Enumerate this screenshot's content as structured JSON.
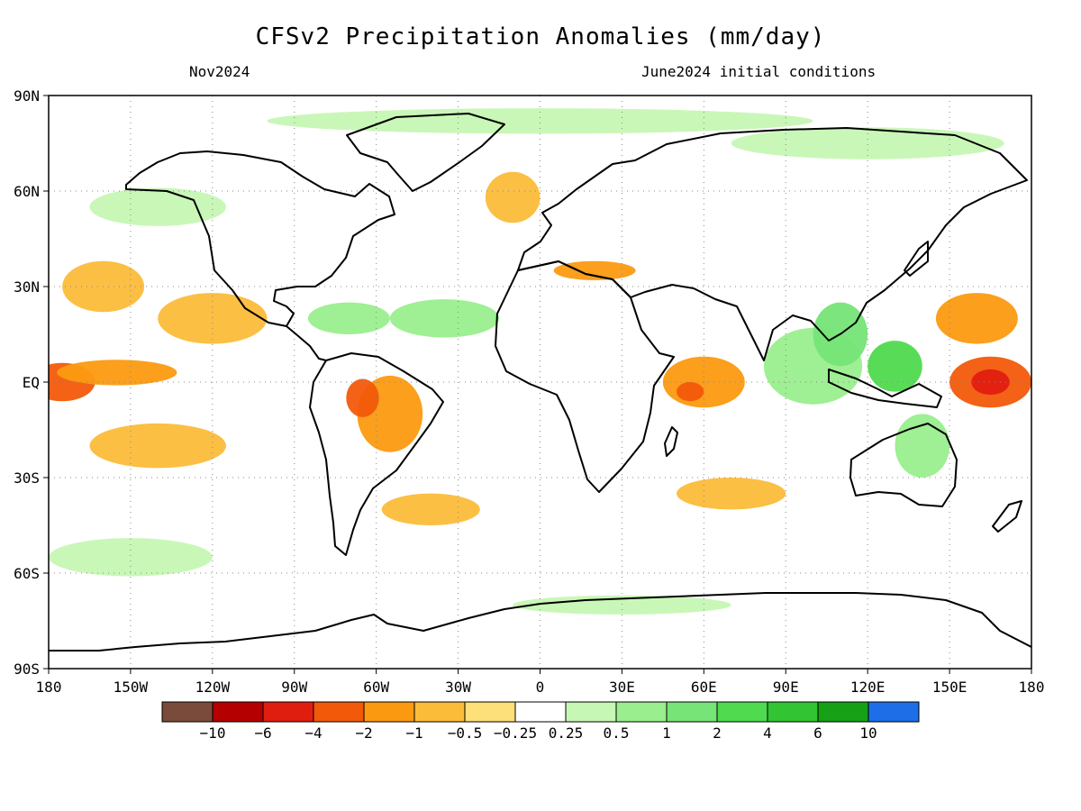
{
  "title": "CFSv2 Precipitation Anomalies (mm/day)",
  "valid_month": "Nov2024",
  "init_note": "June2024 initial conditions",
  "lat_ticks": [
    "90N",
    "60N",
    "30N",
    "EQ",
    "30S",
    "60S",
    "90S"
  ],
  "lon_ticks": [
    "180",
    "150W",
    "120W",
    "90W",
    "60W",
    "30W",
    "0",
    "30E",
    "60E",
    "90E",
    "120E",
    "150E",
    "180"
  ],
  "colorbar": {
    "colors": [
      "#7a4a3a",
      "#b40000",
      "#e01e10",
      "#f25a0a",
      "#fb9a10",
      "#fbbc3a",
      "#fde07a",
      "#ffffff",
      "#c6f7b4",
      "#9aee8e",
      "#76e476",
      "#4fda4f",
      "#32c432",
      "#16a016",
      "#1e6ee8"
    ],
    "labels": [
      "−10",
      "−6",
      "−4",
      "−2",
      "−1",
      "−0.5",
      "−0.25",
      "0.25",
      "0.5",
      "1",
      "2",
      "4",
      "6",
      "10"
    ]
  },
  "anomalies": [
    {
      "lon": -175,
      "lat": 0,
      "rx": 12,
      "ry": 6,
      "level": -2
    },
    {
      "lon": -155,
      "lat": 3,
      "rx": 22,
      "ry": 4,
      "level": -1
    },
    {
      "lon": -140,
      "lat": -20,
      "rx": 25,
      "ry": 7,
      "level": -0.5
    },
    {
      "lon": -120,
      "lat": 20,
      "rx": 20,
      "ry": 8,
      "level": -0.5
    },
    {
      "lon": -160,
      "lat": 30,
      "rx": 15,
      "ry": 8,
      "level": -0.5
    },
    {
      "lon": -140,
      "lat": 55,
      "rx": 25,
      "ry": 6,
      "level": 0.5
    },
    {
      "lon": -150,
      "lat": -55,
      "rx": 30,
      "ry": 6,
      "level": 0.5
    },
    {
      "lon": -70,
      "lat": 20,
      "rx": 15,
      "ry": 5,
      "level": 1
    },
    {
      "lon": -35,
      "lat": 20,
      "rx": 20,
      "ry": 6,
      "level": 1
    },
    {
      "lon": -55,
      "lat": -10,
      "rx": 12,
      "ry": 12,
      "level": -1
    },
    {
      "lon": -65,
      "lat": -5,
      "rx": 6,
      "ry": 6,
      "level": -2
    },
    {
      "lon": -40,
      "lat": -40,
      "rx": 18,
      "ry": 5,
      "level": -0.5
    },
    {
      "lon": -10,
      "lat": 58,
      "rx": 10,
      "ry": 8,
      "level": -0.5
    },
    {
      "lon": 20,
      "lat": 35,
      "rx": 15,
      "ry": 3,
      "level": -1
    },
    {
      "lon": 60,
      "lat": 0,
      "rx": 15,
      "ry": 8,
      "level": -1
    },
    {
      "lon": 55,
      "lat": -3,
      "rx": 5,
      "ry": 3,
      "level": -2
    },
    {
      "lon": 70,
      "lat": -35,
      "rx": 20,
      "ry": 5,
      "level": -0.5
    },
    {
      "lon": 100,
      "lat": 5,
      "rx": 18,
      "ry": 12,
      "level": 1
    },
    {
      "lon": 110,
      "lat": 15,
      "rx": 10,
      "ry": 10,
      "level": 2
    },
    {
      "lon": 130,
      "lat": 5,
      "rx": 10,
      "ry": 8,
      "level": 4
    },
    {
      "lon": 165,
      "lat": 0,
      "rx": 15,
      "ry": 8,
      "level": -2
    },
    {
      "lon": 165,
      "lat": 0,
      "rx": 7,
      "ry": 4,
      "level": -4
    },
    {
      "lon": 160,
      "lat": 20,
      "rx": 15,
      "ry": 8,
      "level": -1
    },
    {
      "lon": 140,
      "lat": -20,
      "rx": 10,
      "ry": 10,
      "level": 1
    },
    {
      "lon": 0,
      "lat": 82,
      "rx": 100,
      "ry": 4,
      "level": 0.5
    },
    {
      "lon": 120,
      "lat": 75,
      "rx": 50,
      "ry": 5,
      "level": 0.5
    },
    {
      "lon": 30,
      "lat": -70,
      "rx": 40,
      "ry": 3,
      "level": 0.5
    }
  ]
}
